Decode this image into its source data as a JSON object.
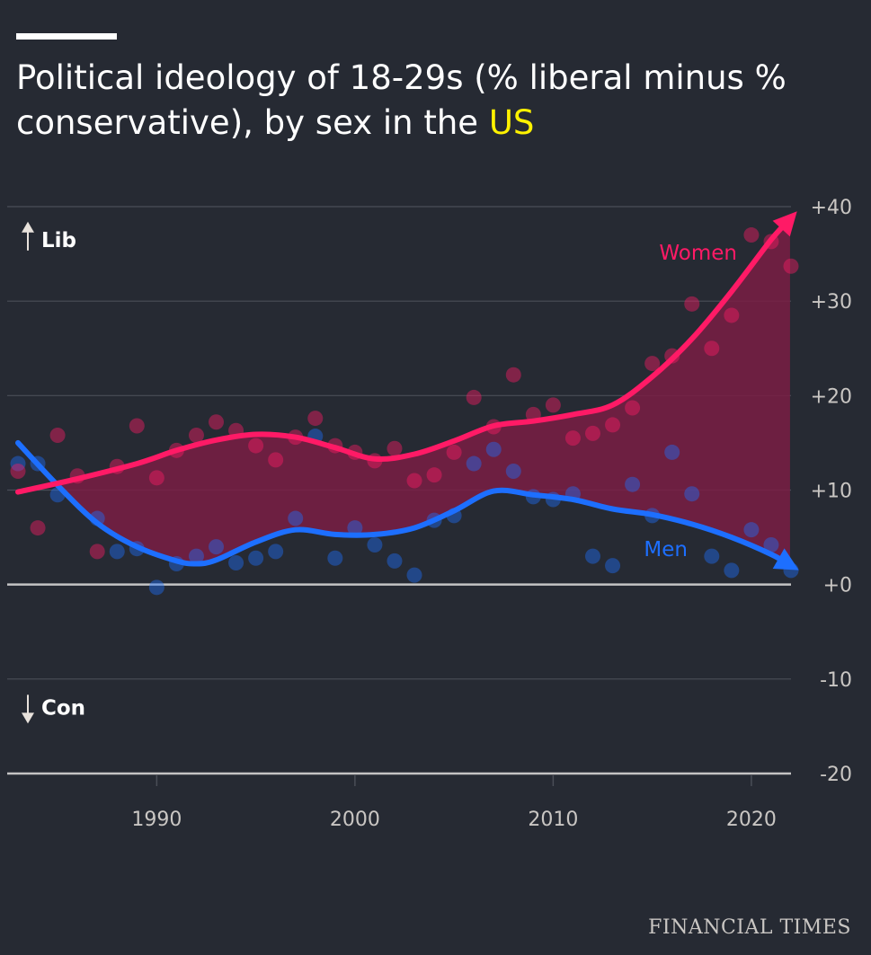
{
  "title": {
    "text_before": "Political ideology of 18-29s (% liberal minus % conservative), by sex in the ",
    "highlight": "US"
  },
  "footer": "FINANCIAL TIMES",
  "colors": {
    "background": "#262a33",
    "grid": "#4a4e57",
    "zero_line": "#c4c4c4",
    "women": "#ff1a66",
    "men": "#1d6fff",
    "shade": "#7a1d44",
    "axis_text": "#c9c6c3",
    "title_highlight": "#fff200"
  },
  "chart_data": {
    "type": "line",
    "y_direction_labels": {
      "up": "Lib",
      "down": "Con"
    },
    "ylim": [
      -20,
      40
    ],
    "xlim": [
      1983,
      2022
    ],
    "y_ticks": [
      "+40",
      "+30",
      "+20",
      "+10",
      "+0",
      "-10",
      "-20"
    ],
    "x_ticks": [
      "1990",
      "2000",
      "2010",
      "2020"
    ],
    "grid": true,
    "series": [
      {
        "name": "Women",
        "label_position": "top-right",
        "trend": [
          [
            1983,
            9.8
          ],
          [
            1986,
            11.2
          ],
          [
            1989,
            12.8
          ],
          [
            1991,
            14.2
          ],
          [
            1993,
            15.3
          ],
          [
            1995,
            15.9
          ],
          [
            1997,
            15.6
          ],
          [
            1999,
            14.5
          ],
          [
            2001,
            13.3
          ],
          [
            2003,
            13.8
          ],
          [
            2005,
            15.2
          ],
          [
            2007,
            16.8
          ],
          [
            2009,
            17.3
          ],
          [
            2011,
            18.0
          ],
          [
            2013,
            19.0
          ],
          [
            2015,
            22.0
          ],
          [
            2017,
            26.0
          ],
          [
            2019,
            31.0
          ],
          [
            2021,
            36.5
          ],
          [
            2022,
            38.8
          ]
        ],
        "points": [
          [
            1983,
            12.0
          ],
          [
            1984,
            6.0
          ],
          [
            1985,
            15.8
          ],
          [
            1986,
            11.5
          ],
          [
            1987,
            3.5
          ],
          [
            1988,
            12.5
          ],
          [
            1989,
            16.8
          ],
          [
            1990,
            11.3
          ],
          [
            1991,
            14.2
          ],
          [
            1992,
            15.8
          ],
          [
            1993,
            17.2
          ],
          [
            1994,
            16.3
          ],
          [
            1995,
            14.7
          ],
          [
            1996,
            13.2
          ],
          [
            1997,
            15.6
          ],
          [
            1998,
            17.6
          ],
          [
            1999,
            14.7
          ],
          [
            2000,
            14.0
          ],
          [
            2001,
            13.1
          ],
          [
            2002,
            14.4
          ],
          [
            2003,
            11.0
          ],
          [
            2004,
            11.6
          ],
          [
            2005,
            14.0
          ],
          [
            2006,
            19.8
          ],
          [
            2007,
            16.7
          ],
          [
            2008,
            22.2
          ],
          [
            2009,
            18.0
          ],
          [
            2010,
            19.0
          ],
          [
            2011,
            15.5
          ],
          [
            2012,
            16.0
          ],
          [
            2013,
            16.9
          ],
          [
            2014,
            18.7
          ],
          [
            2015,
            23.4
          ],
          [
            2016,
            24.2
          ],
          [
            2017,
            29.7
          ],
          [
            2018,
            25.0
          ],
          [
            2019,
            28.5
          ],
          [
            2020,
            37.0
          ],
          [
            2021,
            36.3
          ],
          [
            2022,
            33.7
          ]
        ]
      },
      {
        "name": "Men",
        "label_position": "bottom-right",
        "trend": [
          [
            1983,
            15.0
          ],
          [
            1985,
            10.5
          ],
          [
            1987,
            6.5
          ],
          [
            1989,
            4.0
          ],
          [
            1991,
            2.5
          ],
          [
            1992,
            2.2
          ],
          [
            1993,
            2.6
          ],
          [
            1995,
            4.5
          ],
          [
            1997,
            5.8
          ],
          [
            1999,
            5.3
          ],
          [
            2001,
            5.3
          ],
          [
            2003,
            6.0
          ],
          [
            2005,
            7.8
          ],
          [
            2007,
            9.9
          ],
          [
            2009,
            9.5
          ],
          [
            2011,
            9.0
          ],
          [
            2013,
            8.0
          ],
          [
            2015,
            7.4
          ],
          [
            2017,
            6.4
          ],
          [
            2019,
            5.0
          ],
          [
            2021,
            3.2
          ],
          [
            2022,
            2.0
          ]
        ],
        "points": [
          [
            1983,
            12.8
          ],
          [
            1984,
            12.8
          ],
          [
            1985,
            9.5
          ],
          [
            1987,
            7.0
          ],
          [
            1988,
            3.5
          ],
          [
            1989,
            3.8
          ],
          [
            1990,
            -0.3
          ],
          [
            1991,
            2.2
          ],
          [
            1992,
            3.0
          ],
          [
            1993,
            4.0
          ],
          [
            1994,
            2.3
          ],
          [
            1995,
            2.8
          ],
          [
            1996,
            3.5
          ],
          [
            1997,
            7.0
          ],
          [
            1998,
            15.7
          ],
          [
            1999,
            2.8
          ],
          [
            2000,
            6.0
          ],
          [
            2001,
            4.2
          ],
          [
            2002,
            2.5
          ],
          [
            2003,
            1.0
          ],
          [
            2004,
            6.8
          ],
          [
            2005,
            7.3
          ],
          [
            2006,
            12.8
          ],
          [
            2007,
            14.3
          ],
          [
            2008,
            12.0
          ],
          [
            2009,
            9.3
          ],
          [
            2010,
            9.0
          ],
          [
            2011,
            9.6
          ],
          [
            2012,
            3.0
          ],
          [
            2013,
            2.0
          ],
          [
            2014,
            10.6
          ],
          [
            2015,
            7.3
          ],
          [
            2016,
            14.0
          ],
          [
            2017,
            9.6
          ],
          [
            2018,
            3.0
          ],
          [
            2019,
            1.5
          ],
          [
            2020,
            5.8
          ],
          [
            2021,
            4.2
          ],
          [
            2022,
            1.5
          ]
        ]
      }
    ]
  }
}
